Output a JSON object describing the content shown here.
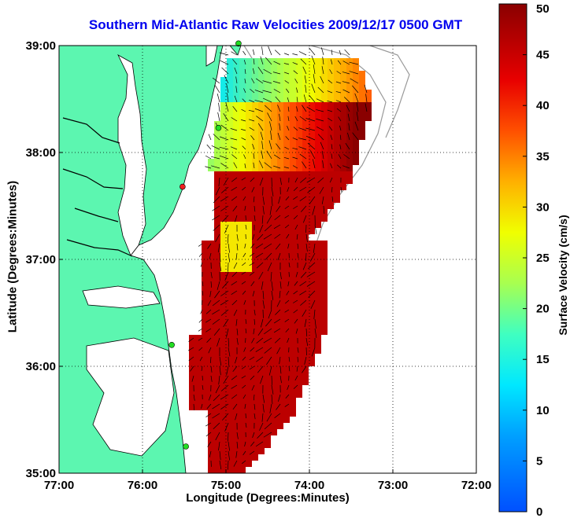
{
  "title": "Southern Mid-Atlantic Raw Velocities 2009/12/17 0500 GMT",
  "map": {
    "x_axis": {
      "label": "Longitude (Degrees:Minutes)",
      "ticks": [
        {
          "label": "77:00",
          "value": -77
        },
        {
          "label": "76:00",
          "value": -76
        },
        {
          "label": "75:00",
          "value": -75
        },
        {
          "label": "74:00",
          "value": -74
        },
        {
          "label": "73:00",
          "value": -73
        },
        {
          "label": "72:00",
          "value": -72
        }
      ]
    },
    "y_axis": {
      "label": "Latitude (Degrees:Minutes)",
      "ticks": [
        {
          "label": "39:00",
          "value": 39
        },
        {
          "label": "38:00",
          "value": 38
        },
        {
          "label": "37:00",
          "value": 37
        },
        {
          "label": "36:00",
          "value": 36
        },
        {
          "label": "35:00",
          "value": 35
        }
      ]
    },
    "land_color": "#5cf6b0",
    "coast_color": "#000000",
    "shelf_line_color": "#999999",
    "station_markers": [
      {
        "lon": -74.85,
        "lat": 39.02,
        "color": "#22dd22"
      },
      {
        "lon": -75.09,
        "lat": 38.23,
        "color": "#22dd22"
      },
      {
        "lon": -75.52,
        "lat": 37.68,
        "color": "#ee2222"
      },
      {
        "lon": -75.65,
        "lat": 36.2,
        "color": "#22dd22"
      },
      {
        "lon": -75.48,
        "lat": 35.25,
        "color": "#22dd22"
      }
    ],
    "gridlines": true
  },
  "colorbar": {
    "label": "Surface Velocity (cm/s)",
    "min": 0,
    "max": 50,
    "ticks": [
      "0",
      "5",
      "10",
      "15",
      "20",
      "25",
      "30",
      "35",
      "40",
      "45",
      "50"
    ]
  }
}
